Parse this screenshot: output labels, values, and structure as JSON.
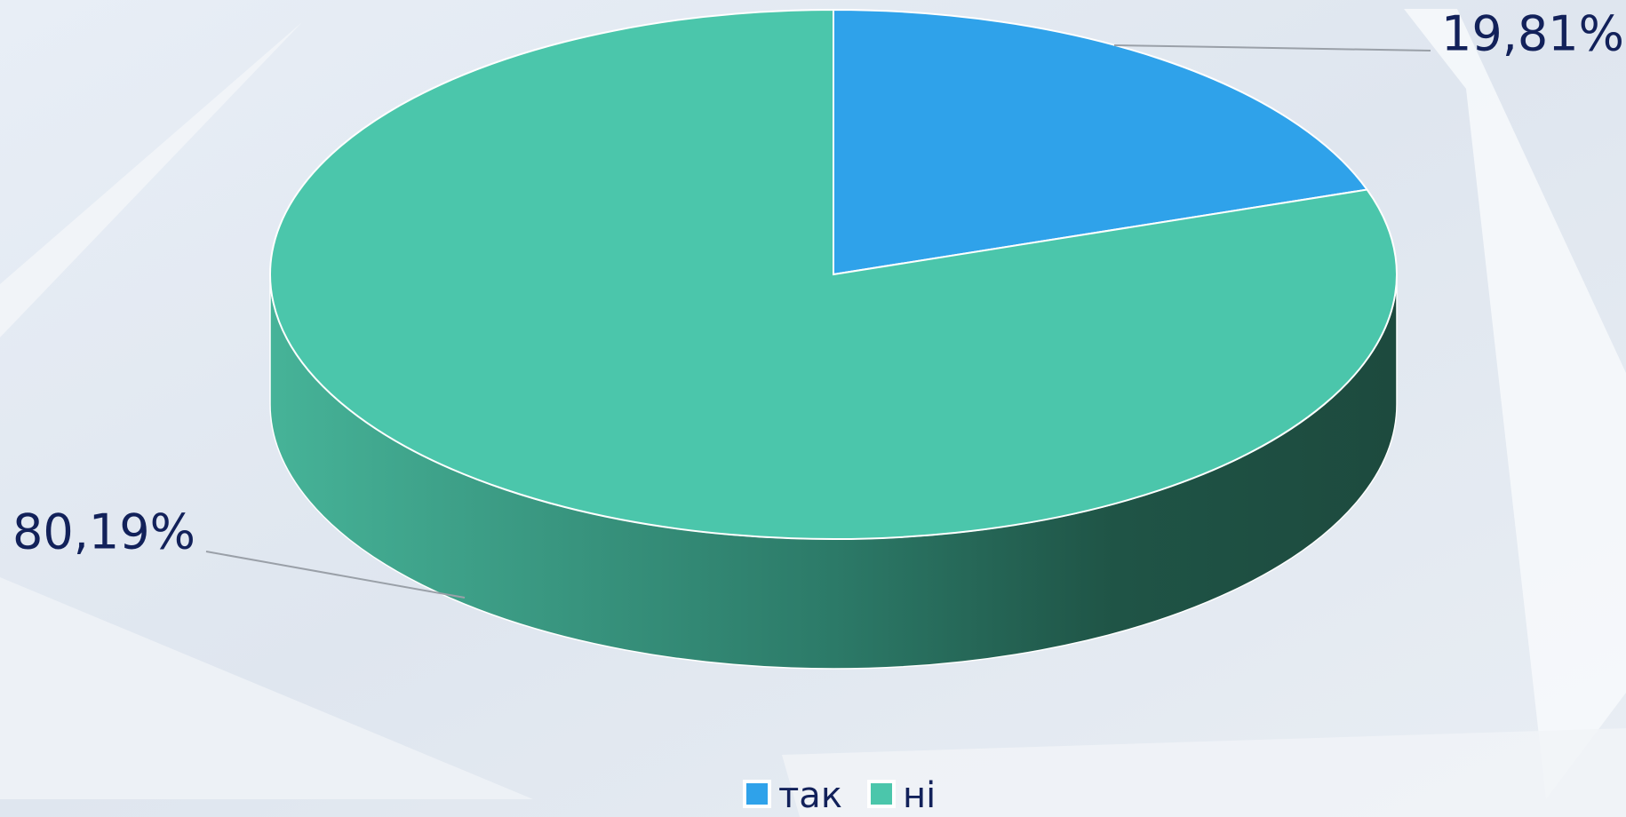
{
  "chart_data": {
    "type": "pie",
    "categories": [
      "так",
      "ні"
    ],
    "values": [
      19.81,
      80.19
    ],
    "value_labels": [
      "19,81%",
      "80,19%"
    ],
    "colors": [
      "#2fa2ea",
      "#4bc6ab"
    ]
  }
}
